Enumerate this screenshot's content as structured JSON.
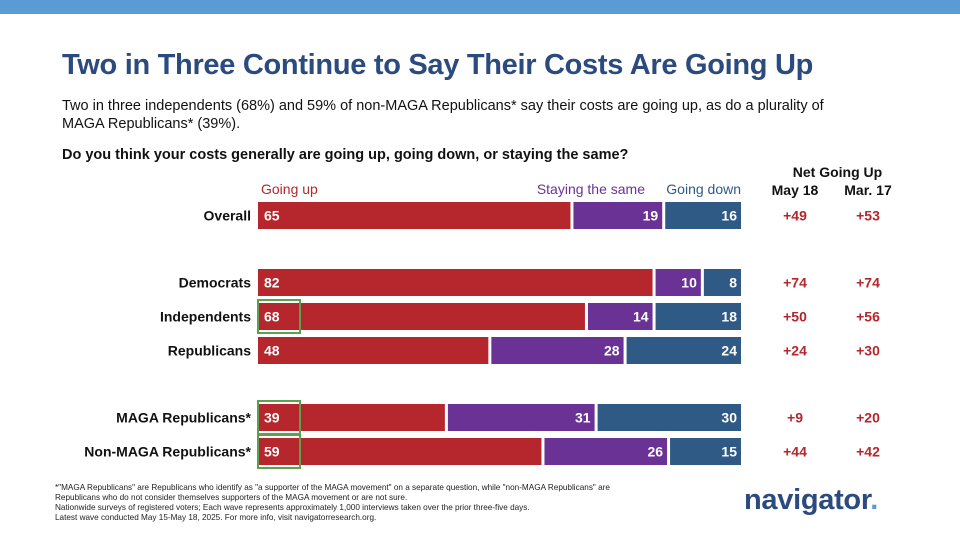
{
  "title": "Two in Three Continue to Say Their Costs Are Going Up",
  "subtitle": "Two in three independents (68%) and 59% of non-MAGA Republicans* say their costs are going up, as do a plurality of MAGA Republicans* (39%).",
  "question": "Do you think your costs generally are going up, going down, or staying the same?",
  "net": {
    "title": "Net Going Up",
    "col1": "May 18",
    "col2": "Mar. 17"
  },
  "chart_data": {
    "type": "bar",
    "orientation": "horizontal",
    "stacked": true,
    "xlim": [
      0,
      100
    ],
    "categories": [
      "Overall",
      "Democrats",
      "Independents",
      "Republicans",
      "MAGA Republicans*",
      "Non-MAGA Republicans*"
    ],
    "groups": [
      [
        0
      ],
      [
        1,
        2,
        3
      ],
      [
        4,
        5
      ]
    ],
    "series": [
      {
        "name": "Going up",
        "color": "#b5262d",
        "values": [
          65,
          82,
          68,
          48,
          39,
          59
        ]
      },
      {
        "name": "Staying the same",
        "color": "#6a3295",
        "values": [
          19,
          10,
          14,
          28,
          31,
          26
        ]
      },
      {
        "name": "Going down",
        "color": "#2f5a86",
        "values": [
          16,
          8,
          18,
          24,
          30,
          15
        ]
      }
    ],
    "highlighted": [
      "Independents",
      "MAGA Republicans*",
      "Non-MAGA Republicans*"
    ],
    "highlight_color": "#5fa04e",
    "net_may18": [
      "+49",
      "+74",
      "+50",
      "+24",
      "+9",
      "+44"
    ],
    "net_mar17": [
      "+53",
      "+74",
      "+56",
      "+30",
      "+20",
      "+42"
    ],
    "net_color": "#b5262d"
  },
  "footnote": [
    "*\"MAGA Republicans\" are Republicans who identify as \"a supporter of the MAGA movement\" on a separate question, while \"non-MAGA Republicans\" are",
    "Republicans who do not consider themselves supporters of the MAGA movement or are not sure.",
    "Nationwide surveys of registered voters; Each wave represents approximately 1,000 interviews taken over the prior three-five days.",
    "Latest wave conducted May 15-May 18, 2025. For more info, visit navigatorresearch.org."
  ],
  "logo": {
    "text": "navigator",
    "dot": "."
  }
}
